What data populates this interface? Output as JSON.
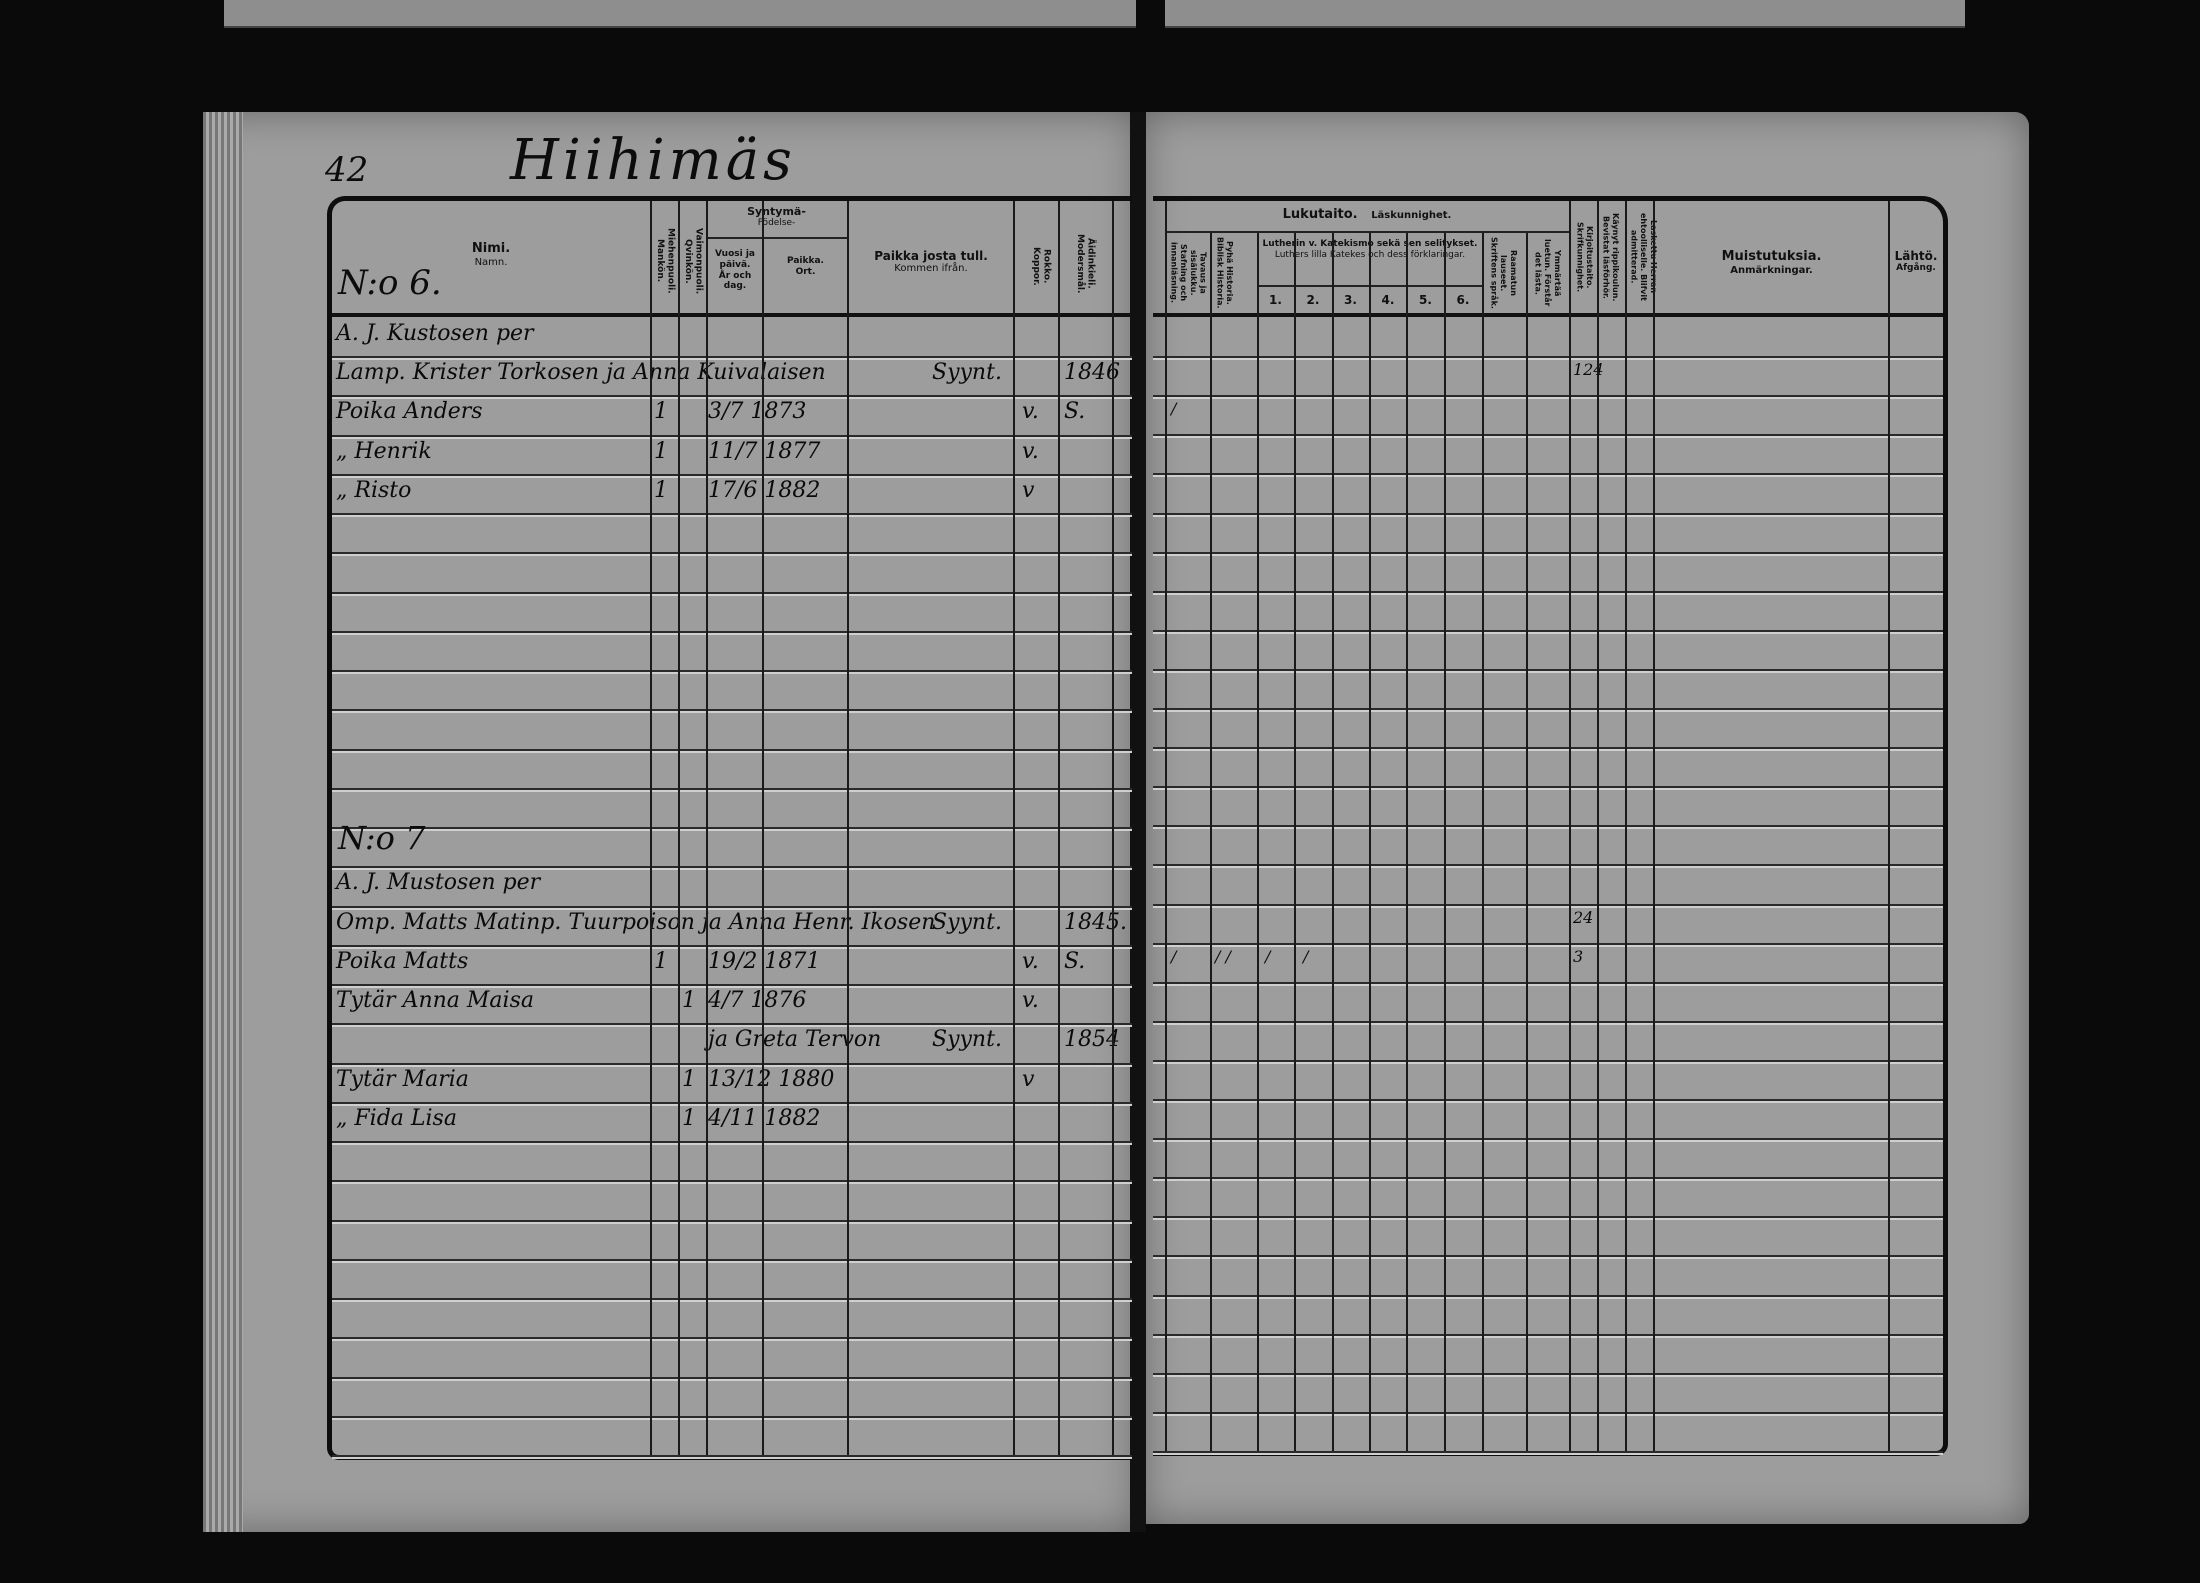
{
  "page_number": "42",
  "village": "Hiihimäs",
  "left": {
    "headers": {
      "name": "Nimi.",
      "name_sv": "Namn.",
      "male": "Miehenpuoli. Mankön.",
      "female": "Vaimonpuoli. Qvinkön.",
      "birth": "Syntymä-",
      "birth_sv": "Födelse-",
      "birth_date": "Vuosi ja päivä.",
      "birth_date_sv": "År och dag.",
      "birth_place": "Paikka.",
      "birth_place_sv": "Ort.",
      "from": "Paikka josta tull.",
      "from_sv": "Kommen ifrån.",
      "vaccinated": "Rokko. Koppor.",
      "language": "Äidinkieli. Modersmål."
    },
    "household_6": "N:o 6.",
    "household_7": "N:o 7",
    "rows": [
      {
        "name": "A. J. Kustosen per"
      },
      {
        "name": "Lamp. Krister Torkosen ja Anna Kuivalaisen",
        "from": "Syynt.",
        "language": "1846"
      },
      {
        "name": "Poika Anders",
        "male": "1",
        "birth_date": "3/7 1873",
        "vaccinated": "v.",
        "language": "S."
      },
      {
        "name": "„ Henrik",
        "male": "1",
        "birth_date": "11/7 1877",
        "vaccinated": "v."
      },
      {
        "name": "„ Risto",
        "male": "1",
        "birth_date": "17/6 1882",
        "vaccinated": "v"
      },
      {},
      {},
      {},
      {},
      {},
      {},
      {},
      {},
      {},
      {
        "name": "A. J. Mustosen per"
      },
      {
        "name": "Omp. Matts Matinp. Tuurpoison ja Anna Henr. Ikosen",
        "from": "Syynt.",
        "language": "1845."
      },
      {
        "name": "Poika Matts",
        "male": "1",
        "birth_date": "19/2 1871",
        "vaccinated": "v.",
        "language": "S."
      },
      {
        "name": "Tytär Anna Maisa",
        "female": "1",
        "birth_date": "4/7 1876",
        "vaccinated": "v."
      },
      {
        "birth_date": "ja Greta Tervon",
        "from": "Syynt.",
        "language": "1854"
      },
      {
        "name": "Tytär Maria",
        "female": "1",
        "birth_date": "13/12 1880",
        "vaccinated": "v"
      },
      {
        "name": "„ Fida Lisa",
        "female": "1",
        "birth_date": "4/11 1882"
      },
      {},
      {},
      {},
      {},
      {},
      {},
      {},
      {}
    ]
  },
  "right": {
    "headers": {
      "literacy": "Lukutaito.",
      "literacy_sv": "Läskunnighet.",
      "spelling": "Tavaus ja sisälukku. Stafning och innanläsning.",
      "bible_history": "Pyhä Historia. Biblisk Historia.",
      "catechism": "Lutherin v. Katekismo sekä sen selitykset.",
      "catechism_sv": "Luthers lilla Katekes och dess förklaringar.",
      "parts": [
        "1.",
        "2.",
        "3.",
        "4.",
        "5.",
        "6."
      ],
      "scripture": "Raamatun lauseet. Skriftens språk.",
      "understands": "Ymmärtää luetun. Förstår det lästa.",
      "writing": "Kirjoitustaito. Skrifkunnighet.",
      "confirmation": "Käynyt rippikoulun. Bevistat läsförhör.",
      "communion": "Laskettu Herran ehtoolliselle. Blifvit admitterad.",
      "remarks": "Muistutuksia.",
      "remarks_sv": "Anmärkningar.",
      "departure": "Lähtö.",
      "departure_sv": "Afgång."
    },
    "marks": [
      {
        "row": 1,
        "col": "confirmation",
        "text": "124"
      },
      {
        "row": 2,
        "col": "spelling",
        "text": "/"
      },
      {
        "row": 15,
        "col": "confirmation",
        "text": "24"
      },
      {
        "row": 16,
        "col": "spelling",
        "text": "/"
      },
      {
        "row": 16,
        "col": "bible_history",
        "text": "/ /"
      },
      {
        "row": 16,
        "col": "p1",
        "text": "/"
      },
      {
        "row": 16,
        "col": "p2",
        "text": "/"
      },
      {
        "row": 16,
        "col": "confirmation",
        "text": "3"
      }
    ]
  }
}
